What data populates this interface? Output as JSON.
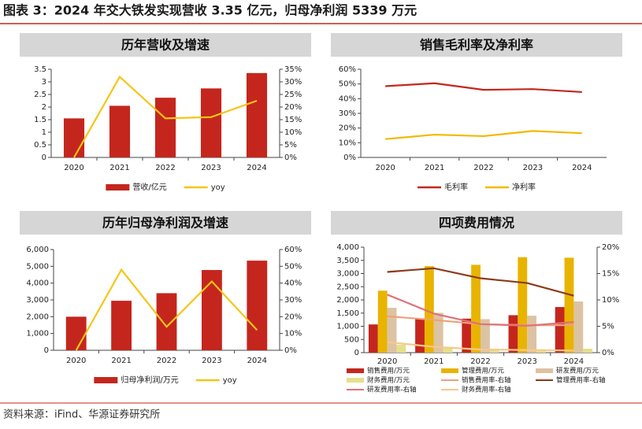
{
  "header": {
    "title": "图表 3：2024 年交大铁发实现营收 3.35 亿元，归母净利润 5339 万元"
  },
  "source": "资料来源：iFind、华源证券研究所",
  "chart_data": [
    {
      "type": "bar",
      "title": "历年营收及增速",
      "categories": [
        "2020",
        "2021",
        "2022",
        "2023",
        "2024"
      ],
      "series": [
        {
          "name": "营收/亿元",
          "type": "bar",
          "color": "#c4261d",
          "values": [
            1.55,
            2.05,
            2.37,
            2.74,
            3.35
          ]
        },
        {
          "name": "yoy",
          "type": "line",
          "axis": "y2",
          "color": "#f5c518",
          "values": [
            0,
            32,
            15.5,
            16,
            22.5
          ]
        }
      ],
      "ylim": [
        0,
        3.5
      ],
      "yticks": [
        0,
        0.5,
        1,
        1.5,
        2,
        2.5,
        3,
        3.5
      ],
      "y2lim": [
        0,
        35
      ],
      "y2ticks": [
        {
          "value": 0,
          "label": "0%"
        },
        {
          "value": 5,
          "label": "5%"
        },
        {
          "value": 10,
          "label": "10%"
        },
        {
          "value": 15,
          "label": "15%"
        },
        {
          "value": 20,
          "label": "20%"
        },
        {
          "value": 25,
          "label": "25%"
        },
        {
          "value": 30,
          "label": "30%"
        },
        {
          "value": 35,
          "label": "35%"
        }
      ]
    },
    {
      "type": "line",
      "title": "销售毛利率及净利率",
      "categories": [
        "2020",
        "2021",
        "2022",
        "2023",
        "2024"
      ],
      "series": [
        {
          "name": "毛利率",
          "type": "line",
          "color": "#c4261d",
          "values": [
            48.5,
            50.5,
            46,
            46.5,
            44.5
          ]
        },
        {
          "name": "净利率",
          "type": "line",
          "color": "#f5b800",
          "values": [
            12.5,
            15.5,
            14.5,
            18,
            16.5
          ]
        }
      ],
      "ylim": [
        0,
        60
      ],
      "yticks": [
        {
          "value": 0,
          "label": "0%"
        },
        {
          "value": 10,
          "label": "10%"
        },
        {
          "value": 20,
          "label": "20%"
        },
        {
          "value": 30,
          "label": "30%"
        },
        {
          "value": 40,
          "label": "40%"
        },
        {
          "value": 50,
          "label": "50%"
        },
        {
          "value": 60,
          "label": "60%"
        }
      ]
    },
    {
      "type": "bar",
      "title": "历年归母净利润及增速",
      "categories": [
        "2020",
        "2021",
        "2022",
        "2023",
        "2024"
      ],
      "series": [
        {
          "name": "归母净利润/万元",
          "type": "bar",
          "color": "#c4261d",
          "values": [
            2000,
            2950,
            3400,
            4780,
            5339
          ]
        },
        {
          "name": "yoy",
          "type": "line",
          "axis": "y2",
          "color": "#f5c518",
          "values": [
            0,
            48,
            14,
            41,
            12
          ]
        }
      ],
      "ylim": [
        0,
        6000
      ],
      "yticks": [
        0,
        {
          "value": 1000,
          "label": "1,000"
        },
        {
          "value": 2000,
          "label": "2,000"
        },
        {
          "value": 3000,
          "label": "3,000"
        },
        {
          "value": 4000,
          "label": "4,000"
        },
        {
          "value": 5000,
          "label": "5,000"
        },
        {
          "value": 6000,
          "label": "6,000"
        }
      ],
      "y2lim": [
        0,
        60
      ],
      "y2ticks": [
        {
          "value": 0,
          "label": "0%"
        },
        {
          "value": 10,
          "label": "10%"
        },
        {
          "value": 20,
          "label": "20%"
        },
        {
          "value": 30,
          "label": "30%"
        },
        {
          "value": 40,
          "label": "40%"
        },
        {
          "value": 50,
          "label": "50%"
        },
        {
          "value": 60,
          "label": "60%"
        }
      ]
    },
    {
      "type": "bar",
      "title": "四项费用情况",
      "categories": [
        "2020",
        "2021",
        "2022",
        "2023",
        "2024"
      ],
      "series": [
        {
          "name": "销售费用/万元",
          "type": "bar",
          "color": "#c4261d",
          "values": [
            1070,
            1270,
            1290,
            1420,
            1730
          ]
        },
        {
          "name": "管理费用/万元",
          "type": "bar",
          "color": "#e8b400",
          "values": [
            2350,
            3280,
            3330,
            3620,
            3600
          ]
        },
        {
          "name": "研发费用/万元",
          "type": "bar",
          "color": "#dcc3a3",
          "values": [
            1700,
            1510,
            1270,
            1400,
            1940
          ]
        },
        {
          "name": "财务费用/万元",
          "type": "bar",
          "color": "#e4e08a",
          "values": [
            300,
            220,
            150,
            120,
            150
          ]
        },
        {
          "name": "销售费用率-右轴",
          "type": "line",
          "axis": "y2",
          "color": "#f0a07a",
          "values": [
            6.9,
            6.2,
            5.4,
            5.2,
            5.2
          ]
        },
        {
          "name": "管理费用率-右轴",
          "type": "line",
          "axis": "y2",
          "color": "#8b3a1a",
          "values": [
            15.3,
            16,
            14.1,
            13.2,
            10.8
          ]
        },
        {
          "name": "研发费用率-右轴",
          "type": "line",
          "axis": "y2",
          "color": "#e0707a",
          "values": [
            11,
            7.4,
            5.4,
            5.1,
            5.8
          ]
        },
        {
          "name": "财务费用率-右轴",
          "type": "line",
          "axis": "y2",
          "color": "#f8c88a",
          "values": [
            2,
            1.1,
            0.6,
            0.5,
            0.4
          ]
        }
      ],
      "ylim": [
        0,
        4000
      ],
      "yticks": [
        0,
        500,
        {
          "value": 1000,
          "label": "1,000"
        },
        {
          "value": 1500,
          "label": "1,500"
        },
        {
          "value": 2000,
          "label": "2,000"
        },
        {
          "value": 2500,
          "label": "2,500"
        },
        {
          "value": 3000,
          "label": "3,000"
        },
        {
          "value": 3500,
          "label": "3,500"
        },
        {
          "value": 4000,
          "label": "4,000"
        }
      ],
      "y2lim": [
        0,
        20
      ],
      "y2ticks": [
        {
          "value": 0,
          "label": "0%"
        },
        {
          "value": 5,
          "label": "5%"
        },
        {
          "value": 10,
          "label": "10%"
        },
        {
          "value": 15,
          "label": "15%"
        },
        {
          "value": 20,
          "label": "20%"
        }
      ]
    }
  ]
}
